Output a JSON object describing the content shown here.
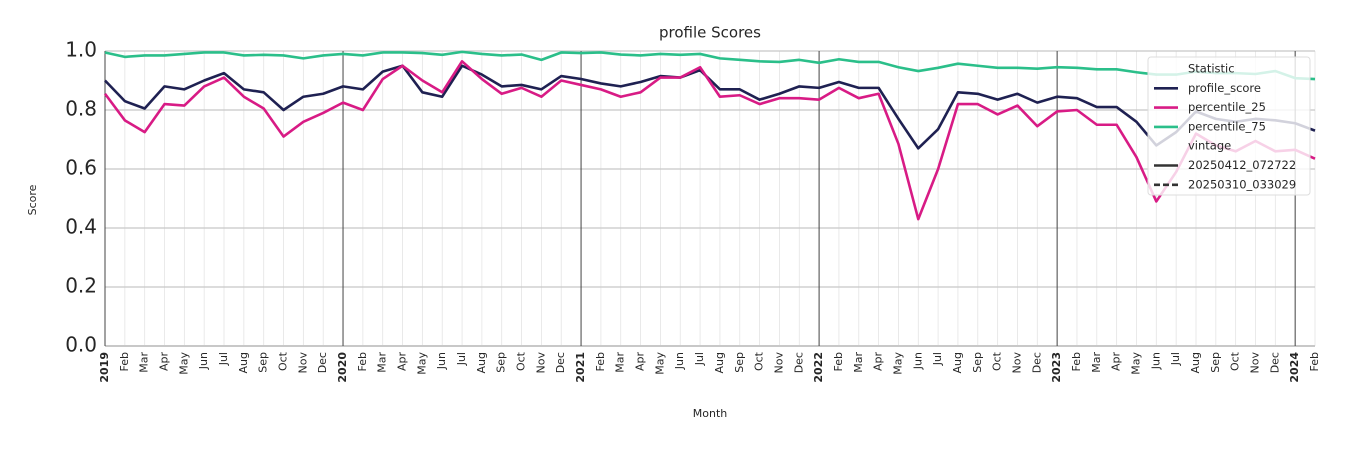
{
  "chart_data": {
    "type": "line",
    "title": "profile Scores",
    "x_label": "Month",
    "y_label": "Score",
    "categories": [
      "2019",
      "Feb",
      "Mar",
      "Apr",
      "May",
      "Jun",
      "Jul",
      "Aug",
      "Sep",
      "Oct",
      "Nov",
      "Dec",
      "2020",
      "Feb",
      "Mar",
      "Apr",
      "May",
      "Jun",
      "Jul",
      "Aug",
      "Sep",
      "Oct",
      "Nov",
      "Dec",
      "2021",
      "Feb",
      "Mar",
      "Apr",
      "May",
      "Jun",
      "Jul",
      "Aug",
      "Sep",
      "Oct",
      "Nov",
      "Dec",
      "2022",
      "Feb",
      "Mar",
      "Apr",
      "May",
      "Jun",
      "Jul",
      "Aug",
      "Sep",
      "Oct",
      "Nov",
      "Dec",
      "2023",
      "Feb",
      "Mar",
      "Apr",
      "May",
      "Jun",
      "Jul",
      "Aug",
      "Sep",
      "Oct",
      "Nov",
      "Dec",
      "2024",
      "Feb"
    ],
    "series": [
      {
        "name": "profile_score",
        "color": "#1f2152",
        "values": [
          0.9,
          0.83,
          0.805,
          0.88,
          0.87,
          0.9,
          0.925,
          0.87,
          0.86,
          0.8,
          0.845,
          0.855,
          0.88,
          0.87,
          0.93,
          0.95,
          0.86,
          0.845,
          0.95,
          0.92,
          0.88,
          0.885,
          0.87,
          0.915,
          0.905,
          0.89,
          0.88,
          0.895,
          0.915,
          0.91,
          0.935,
          0.87,
          0.87,
          0.835,
          0.855,
          0.88,
          0.875,
          0.895,
          0.875,
          0.875,
          0.77,
          0.67,
          0.735,
          0.86,
          0.855,
          0.835,
          0.855,
          0.825,
          0.845,
          0.84,
          0.81,
          0.81,
          0.76,
          0.68,
          0.725,
          0.795,
          0.77,
          0.76,
          0.77,
          0.765,
          0.755,
          0.73
        ]
      },
      {
        "name": "percentile_25",
        "color": "#d81b85",
        "values": [
          0.855,
          0.765,
          0.725,
          0.82,
          0.815,
          0.88,
          0.91,
          0.845,
          0.805,
          0.71,
          0.76,
          0.79,
          0.825,
          0.8,
          0.905,
          0.95,
          0.9,
          0.86,
          0.965,
          0.905,
          0.855,
          0.875,
          0.845,
          0.9,
          0.885,
          0.87,
          0.845,
          0.86,
          0.91,
          0.91,
          0.945,
          0.845,
          0.85,
          0.82,
          0.84,
          0.84,
          0.835,
          0.875,
          0.84,
          0.855,
          0.685,
          0.43,
          0.6,
          0.82,
          0.82,
          0.785,
          0.815,
          0.745,
          0.795,
          0.8,
          0.75,
          0.75,
          0.64,
          0.49,
          0.59,
          0.72,
          0.68,
          0.66,
          0.695,
          0.66,
          0.665,
          0.635
        ]
      },
      {
        "name": "percentile_75",
        "color": "#2bbf8a",
        "values": [
          0.995,
          0.98,
          0.985,
          0.985,
          0.99,
          0.995,
          0.995,
          0.985,
          0.987,
          0.985,
          0.975,
          0.985,
          0.99,
          0.985,
          0.995,
          0.995,
          0.993,
          0.987,
          0.997,
          0.99,
          0.985,
          0.988,
          0.97,
          0.995,
          0.993,
          0.995,
          0.988,
          0.985,
          0.99,
          0.987,
          0.99,
          0.975,
          0.97,
          0.965,
          0.963,
          0.97,
          0.96,
          0.972,
          0.963,
          0.963,
          0.945,
          0.932,
          0.943,
          0.957,
          0.95,
          0.943,
          0.943,
          0.94,
          0.945,
          0.943,
          0.938,
          0.938,
          0.928,
          0.92,
          0.92,
          0.93,
          0.925,
          0.925,
          0.922,
          0.932,
          0.908,
          0.905
        ]
      }
    ],
    "ylim": [
      0,
      1
    ],
    "yticks": [
      {
        "value": 0,
        "label": "0.0"
      },
      0.2,
      0.4,
      0.6,
      0.8,
      {
        "value": 1,
        "label": "1.0"
      }
    ],
    "grid": true,
    "legend": {
      "loc": "upper right",
      "series_title": "Statistic",
      "vintage_title": "vintage",
      "vintages": [
        {
          "name": "20250412_072722",
          "dash": "solid"
        },
        {
          "name": "20250310_033029",
          "dash": "dashed"
        }
      ]
    }
  }
}
